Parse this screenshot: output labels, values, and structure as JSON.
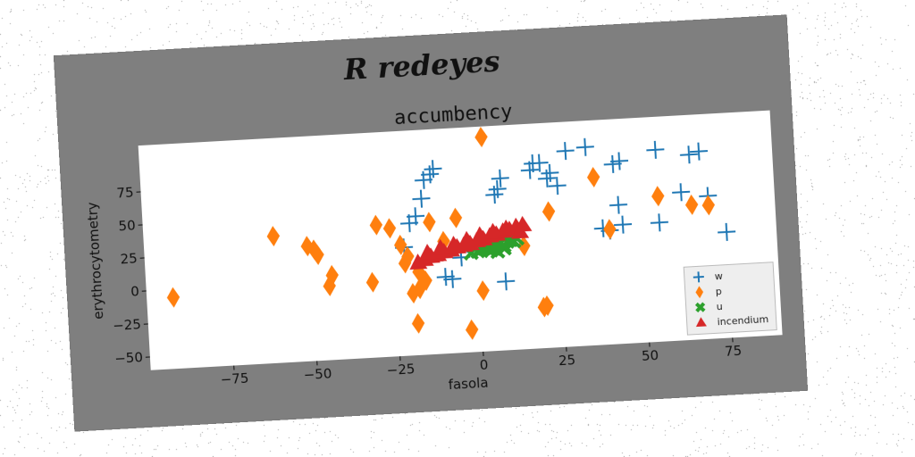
{
  "suptitle": "R redeyes",
  "chart_data": {
    "type": "scatter",
    "title": "accumbency",
    "xlabel": "fasola",
    "ylabel": "erythrocytometry",
    "xlim": [
      -100,
      90
    ],
    "ylim": [
      -60,
      110
    ],
    "xticks": [
      -75,
      -50,
      -25,
      0,
      25,
      50,
      75
    ],
    "yticks": [
      -50,
      -25,
      0,
      25,
      50,
      75
    ],
    "xtick_labels": [
      "−75",
      "−50",
      "−25",
      "0",
      "25",
      "50",
      "75"
    ],
    "ytick_labels": [
      "−50",
      "−25",
      "0",
      "25",
      "50",
      "75"
    ],
    "legend_position": "lower-right",
    "grid": false,
    "series": [
      {
        "name": "w",
        "marker": "plus",
        "color": "#1f77b4",
        "x": [
          -22,
          -20,
          -18,
          -16,
          -15,
          -13,
          -12,
          -10,
          -8,
          -5,
          -3,
          2,
          5,
          6,
          7,
          8,
          8,
          17,
          18,
          20,
          22,
          23,
          25,
          28,
          34,
          38,
          40,
          42,
          43,
          44,
          44,
          55,
          55,
          62,
          65,
          68,
          70,
          75
        ],
        "y": [
          22,
          40,
          45,
          58,
          72,
          76,
          80,
          -2,
          -4,
          12,
          22,
          23,
          18,
          58,
          62,
          -8,
          70,
          75,
          80,
          80,
          68,
          72,
          62,
          88,
          90,
          28,
          26,
          76,
          45,
          30,
          78,
          85,
          30,
          52,
          80,
          82,
          48,
          20
        ]
      },
      {
        "name": "p",
        "marker": "diamond",
        "color": "#ff7f0e",
        "x": [
          -92,
          -61,
          -51,
          -49,
          -48,
          -45,
          -44,
          -32,
          -30,
          -26,
          -23,
          -22,
          -21,
          -20,
          -19,
          -18,
          -18,
          -16,
          -14,
          -10,
          -6,
          -3,
          1,
          3,
          14,
          19,
          20,
          22,
          36,
          40,
          55,
          65,
          70
        ],
        "y": [
          -6,
          36,
          27,
          24,
          20,
          -4,
          4,
          -3,
          40,
          37,
          24,
          10,
          15,
          -13,
          -36,
          -10,
          3,
          -4,
          40,
          25,
          42,
          -43,
          -14,
          102,
          18,
          -29,
          -28,
          43,
          67,
          27,
          50,
          42,
          41
        ]
      },
      {
        "name": "u",
        "marker": "x",
        "color": "#2ca02c",
        "x": [
          -2,
          0,
          1,
          2,
          3,
          4,
          5,
          6,
          7,
          8,
          9,
          10,
          11,
          12,
          4,
          6,
          8
        ],
        "y": [
          15,
          16,
          17,
          18,
          17,
          19,
          18,
          20,
          21,
          19,
          22,
          23,
          22,
          24,
          16,
          15,
          17
        ]
      },
      {
        "name": "incendium",
        "marker": "triangle",
        "color": "#d62728",
        "x": [
          -18,
          -16,
          -14,
          -12,
          -10,
          -8,
          -6,
          -4,
          -2,
          0,
          2,
          4,
          6,
          8,
          10,
          12,
          14,
          -15,
          -11,
          -7,
          -3,
          1,
          5,
          9,
          13
        ],
        "y": [
          10,
          12,
          14,
          15,
          17,
          18,
          20,
          21,
          22,
          24,
          25,
          27,
          28,
          30,
          31,
          33,
          34,
          17,
          20,
          22,
          25,
          28,
          30,
          32,
          29
        ]
      }
    ]
  }
}
